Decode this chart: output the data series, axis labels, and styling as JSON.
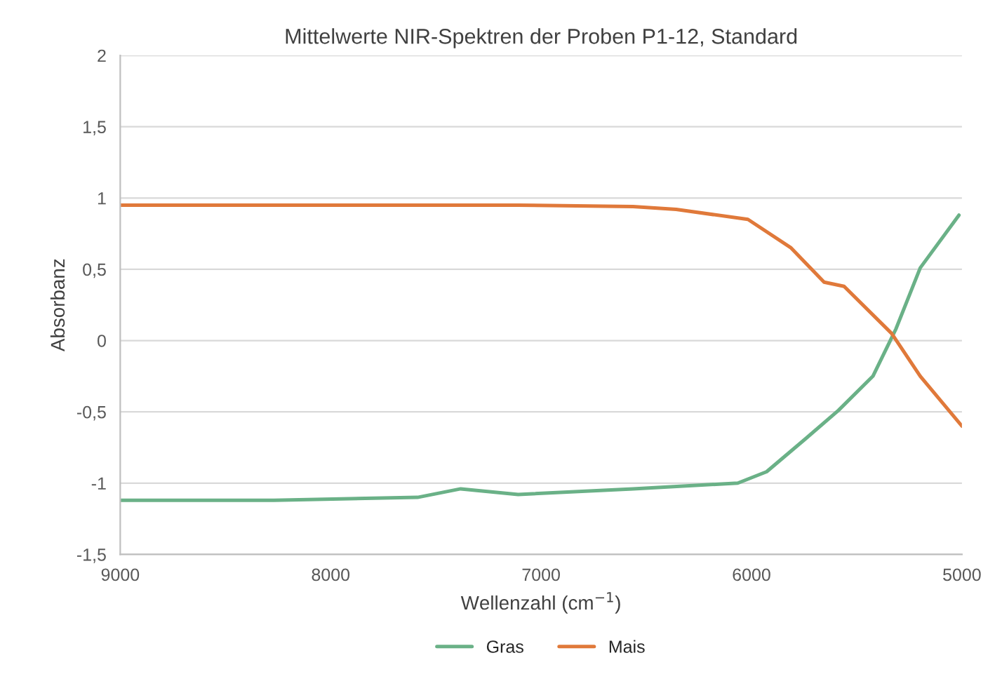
{
  "chart_data": {
    "type": "line",
    "title": "Mittelwerte NIR-Spektren der Proben P1-12, Standard",
    "xlabel": "Wellenzahl (cm$^{−1}$)",
    "ylabel": "Absorbanz",
    "xlim": [
      9000,
      5000
    ],
    "xticks": [
      9000,
      8000,
      7000,
      6000,
      5000
    ],
    "ylim": [
      -1.5,
      2
    ],
    "yticks": [
      {
        "value": -1.5,
        "label": "-1,5"
      },
      {
        "value": -1,
        "label": "-1"
      },
      {
        "value": -0.5,
        "label": "-0,5"
      },
      {
        "value": 0,
        "label": "0"
      },
      {
        "value": 0.5,
        "label": "0,5"
      },
      {
        "value": 1,
        "label": "1"
      },
      {
        "value": 1.5,
        "label": "1,5"
      },
      {
        "value": 2,
        "label": "2"
      }
    ],
    "grid": "y",
    "legend": "bottom",
    "marker": "none",
    "line_style": "solid",
    "series": [
      {
        "name": "Gras",
        "color": "#6ab187",
        "x": [
          9000,
          8270,
          7587,
          7382,
          7109,
          6563,
          6065,
          5928,
          5744,
          5587,
          5423,
          5314,
          5198,
          5014
        ],
        "values": [
          -1.12,
          -1.12,
          -1.1,
          -1.04,
          -1.08,
          -1.04,
          -1.0,
          -0.92,
          -0.69,
          -0.49,
          -0.25,
          0.08,
          0.51,
          0.88
        ]
      },
      {
        "name": "Mais",
        "color": "#e0793a",
        "x": [
          9000,
          8270,
          7587,
          7109,
          6563,
          6358,
          6017,
          5812,
          5655,
          5560,
          5334,
          5198,
          5000
        ],
        "values": [
          0.95,
          0.95,
          0.95,
          0.95,
          0.94,
          0.92,
          0.85,
          0.65,
          0.41,
          0.38,
          0.05,
          -0.25,
          -0.6
        ]
      }
    ]
  }
}
